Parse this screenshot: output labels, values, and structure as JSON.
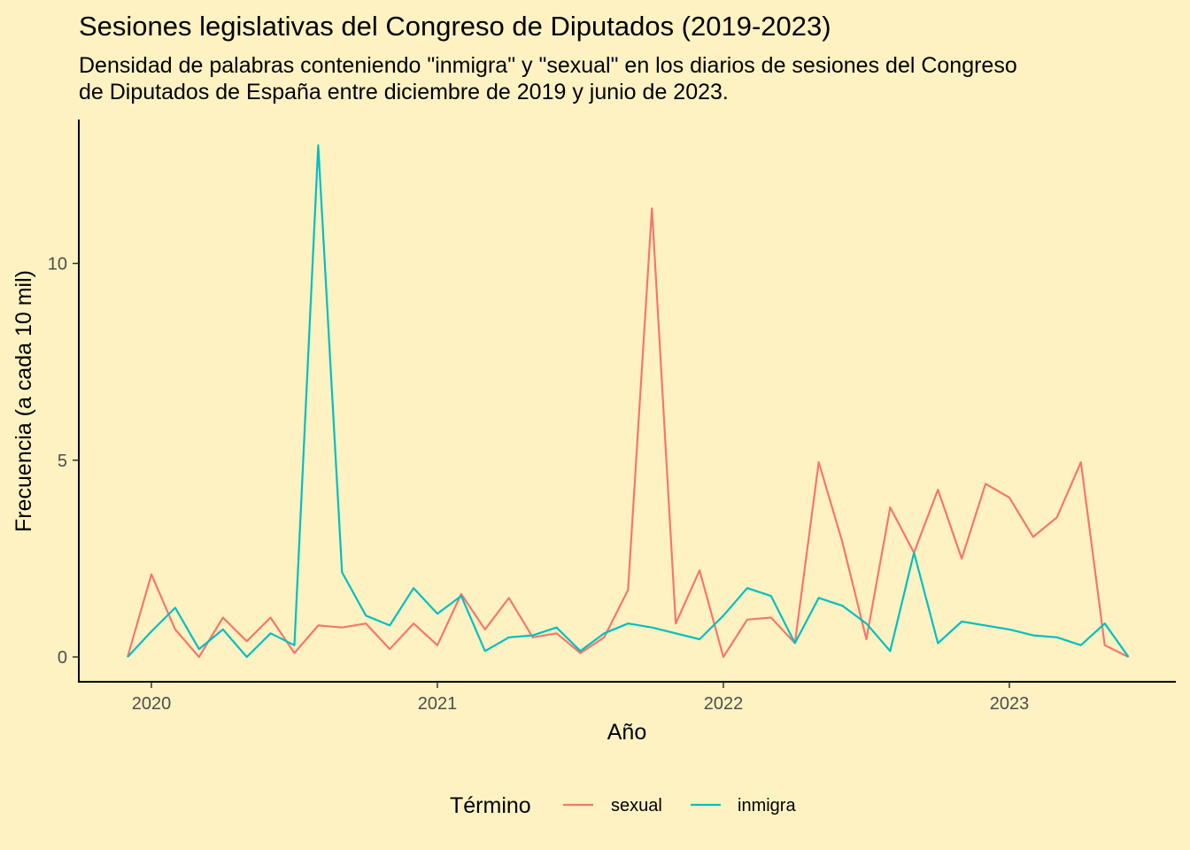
{
  "chart_data": {
    "type": "line",
    "title": "Sesiones legislativas del Congreso de Diputados (2019-2023)",
    "subtitle_lines": [
      "Densidad de palabras conteniendo \"inmigra\" y \"sexual\" en los diarios de sesiones del Congreso",
      "de Diputados de España entre diciembre de 2019 y junio de 2023."
    ],
    "xlabel": "Año",
    "ylabel": "Frecuencia (a cada 10 mil)",
    "x_ticks": [
      "2020",
      "2021",
      "2022",
      "2023"
    ],
    "y_ticks": [
      0,
      5,
      10
    ],
    "ylim": [
      -0.65,
      13.7
    ],
    "xlim": [
      "2019-09",
      "2023-09"
    ],
    "grid": false,
    "legend": {
      "title": "Término",
      "position": "bottom",
      "entries": [
        "sexual",
        "inmigra"
      ]
    },
    "x": [
      "2019-12",
      "2020-01",
      "2020-02",
      "2020-03",
      "2020-04",
      "2020-05",
      "2020-06",
      "2020-07",
      "2020-08",
      "2020-09",
      "2020-10",
      "2020-11",
      "2020-12",
      "2021-01",
      "2021-02",
      "2021-03",
      "2021-04",
      "2021-05",
      "2021-06",
      "2021-07",
      "2021-08",
      "2021-09",
      "2021-10",
      "2021-11",
      "2021-12",
      "2022-01",
      "2022-02",
      "2022-03",
      "2022-04",
      "2022-05",
      "2022-06",
      "2022-07",
      "2022-08",
      "2022-09",
      "2022-10",
      "2022-11",
      "2022-12",
      "2023-01",
      "2023-02",
      "2023-03",
      "2023-04",
      "2023-05",
      "2023-06"
    ],
    "series": [
      {
        "name": "sexual",
        "color": "#F8766D",
        "values": [
          0.0,
          2.1,
          0.7,
          0.0,
          1.0,
          0.4,
          1.0,
          0.1,
          0.8,
          0.75,
          0.85,
          0.2,
          0.85,
          0.3,
          1.6,
          0.7,
          1.5,
          0.5,
          0.6,
          0.1,
          0.5,
          1.7,
          11.4,
          0.85,
          2.2,
          0.0,
          0.95,
          1.0,
          0.35,
          4.95,
          2.9,
          0.45,
          3.8,
          2.65,
          4.25,
          2.5,
          4.4,
          4.05,
          3.05,
          3.55,
          4.95,
          0.3,
          0.0
        ]
      },
      {
        "name": "inmigra",
        "color": "#00BFC4",
        "values": [
          0.0,
          0.65,
          1.25,
          0.2,
          0.7,
          0.0,
          0.6,
          0.3,
          13.0,
          2.15,
          1.05,
          0.8,
          1.75,
          1.1,
          1.55,
          0.15,
          0.5,
          0.55,
          0.75,
          0.15,
          0.6,
          0.85,
          0.75,
          0.6,
          0.45,
          1.05,
          1.75,
          1.55,
          0.35,
          1.5,
          1.3,
          0.85,
          0.15,
          2.65,
          0.35,
          0.9,
          0.8,
          0.7,
          0.55,
          0.5,
          0.3,
          0.85,
          0.0
        ]
      }
    ]
  }
}
